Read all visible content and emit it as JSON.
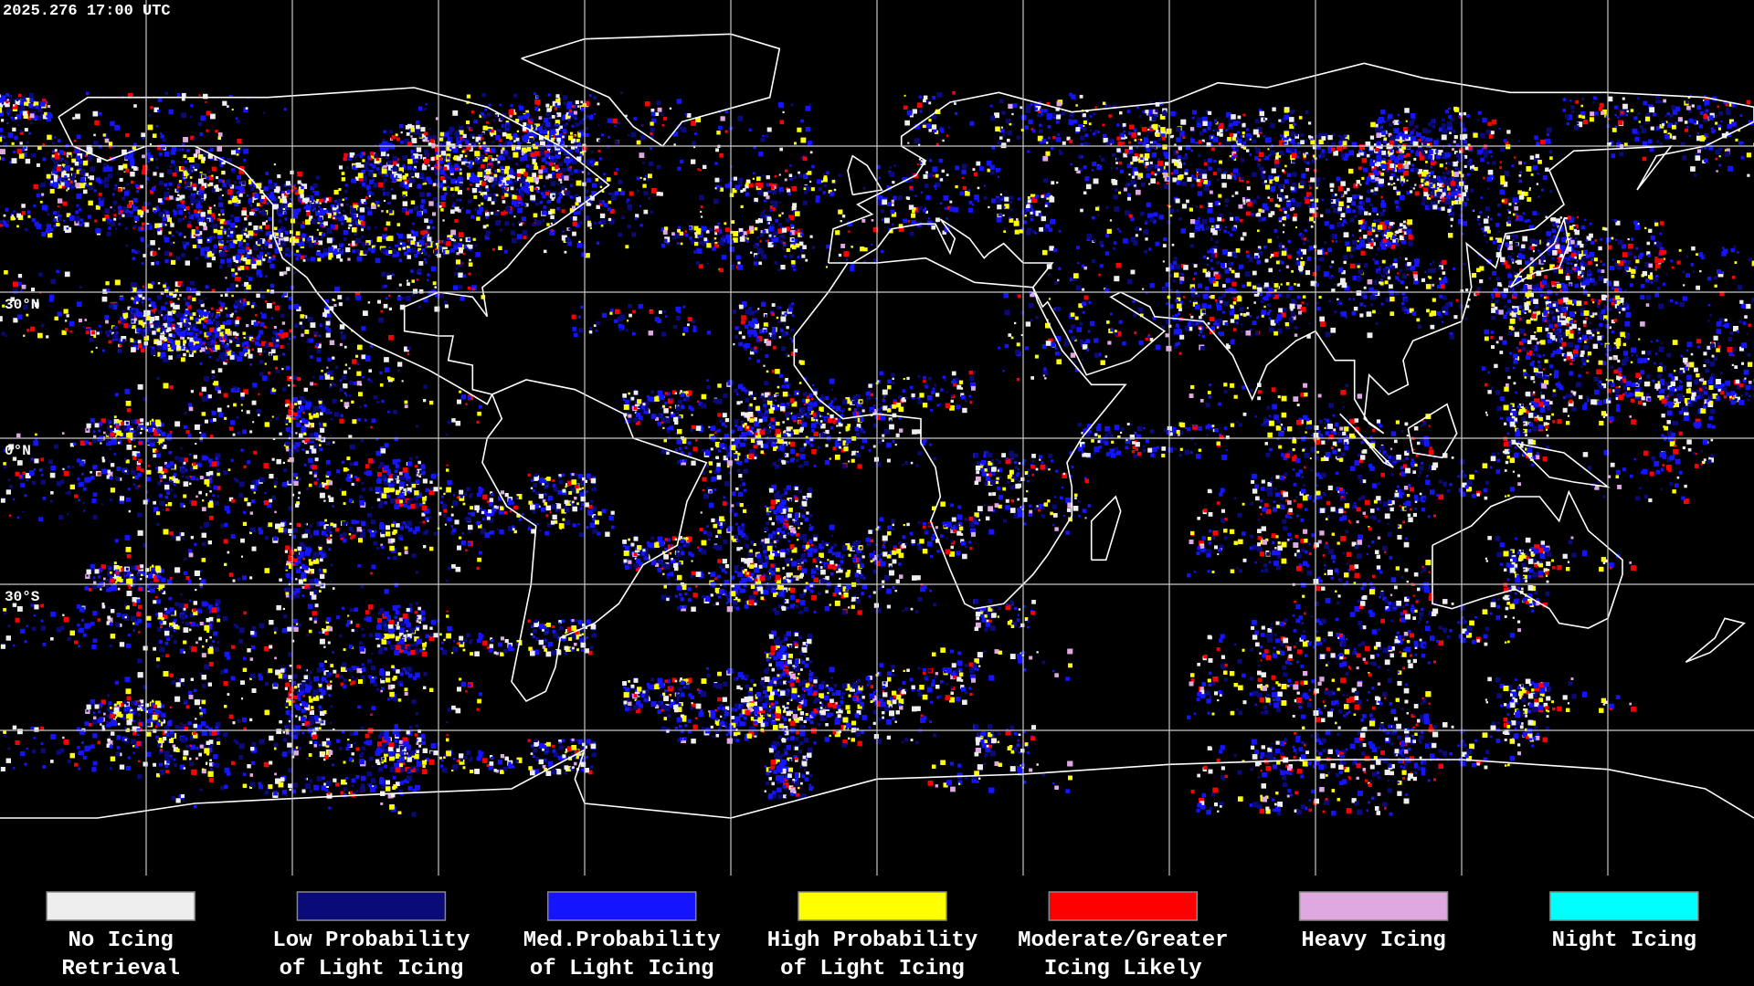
{
  "header": {
    "timestamp": "2025.276 17:00 UTC"
  },
  "map": {
    "lat_labels": [
      "30°N",
      "0°N",
      "30°S"
    ]
  },
  "legend": [
    {
      "label": [
        "No Icing",
        "Retrieval"
      ],
      "color": "#eeeeee"
    },
    {
      "label": [
        "Low Probability",
        "of Light Icing"
      ],
      "color": "#0a0a78"
    },
    {
      "label": [
        "Med.Probability",
        "of Light Icing"
      ],
      "color": "#1414ff"
    },
    {
      "label": [
        "High Probability",
        "of Light Icing"
      ],
      "color": "#ffff00"
    },
    {
      "label": [
        "Moderate/Greater",
        "Icing Likely"
      ],
      "color": "#ff0000"
    },
    {
      "label": [
        "Heavy Icing"
      ],
      "color": "#e0a8e0"
    },
    {
      "label": [
        "Night Icing"
      ],
      "color": "#00ffff"
    }
  ]
}
